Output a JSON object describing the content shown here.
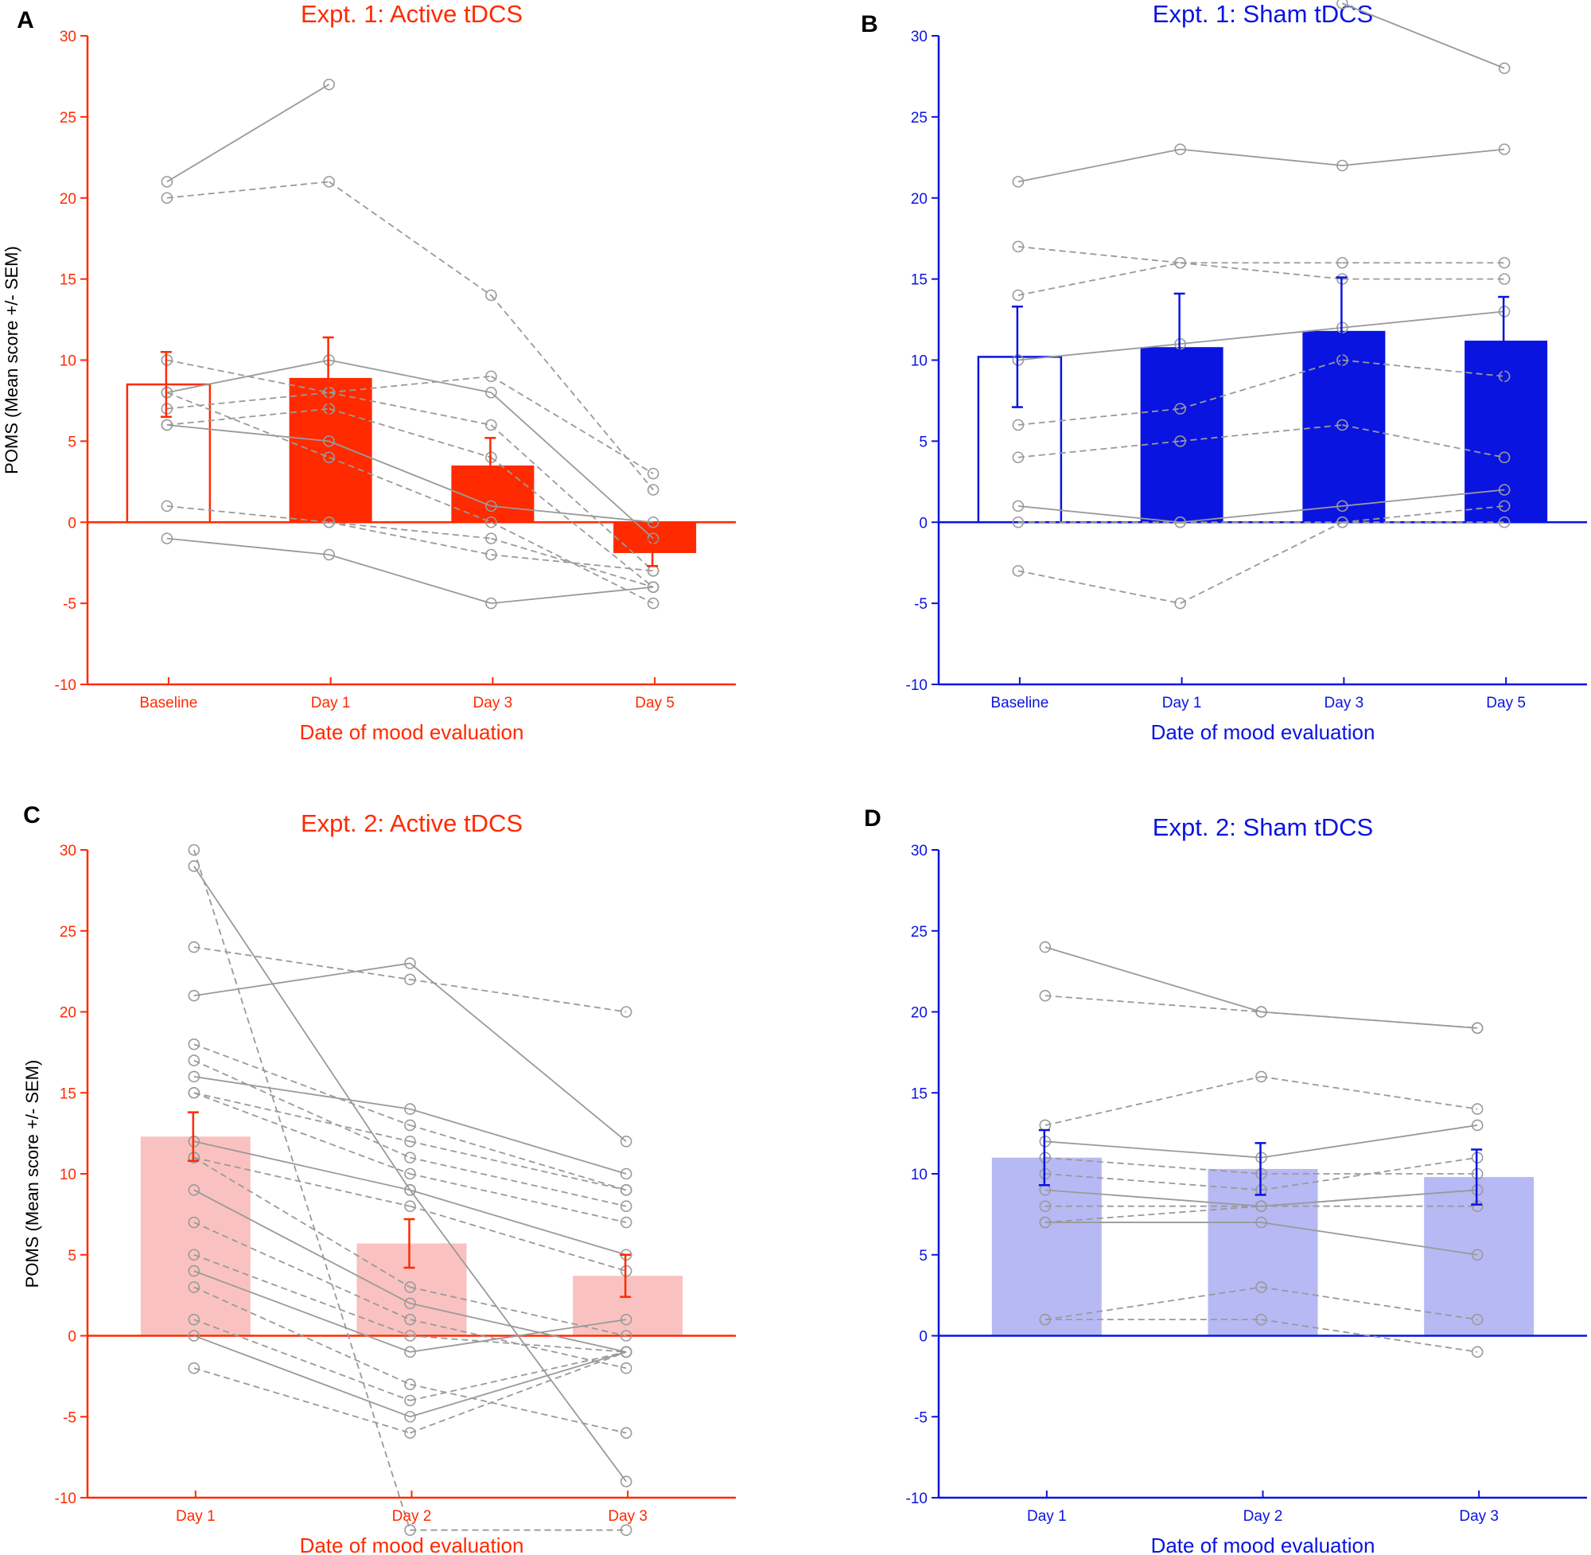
{
  "figure": {
    "ylabel": "POMS (Mean score +/- SEM)",
    "colors": {
      "red": "#ff2a00",
      "red_light": "#f9c2c0",
      "blue": "#0a14e0",
      "blue_light": "#b7b9f4",
      "individual": "#9a9a9a"
    }
  },
  "chart_data": [
    {
      "panel": "A",
      "type": "bar",
      "title": "Expt. 1: Active tDCS",
      "xlabel": "Date of mood evaluation",
      "ylabel": "POMS (Mean score +/- SEM)",
      "ylim": [
        -10,
        30
      ],
      "yticks": [
        -10,
        -5,
        0,
        5,
        10,
        15,
        20,
        25,
        30
      ],
      "categories": [
        "Baseline",
        "Day 1",
        "Day 3",
        "Day 5"
      ],
      "series": [
        {
          "name": "Mean",
          "values": [
            8.5,
            8.9,
            3.5,
            -1.9
          ],
          "sem": [
            2.0,
            2.5,
            1.7,
            0.8
          ]
        }
      ],
      "bar_style": [
        "open",
        "solid",
        "solid",
        "solid"
      ],
      "theme": "red",
      "individual_lines": [
        [
          21,
          27,
          null,
          null
        ],
        [
          20,
          21,
          14,
          2
        ],
        [
          10,
          8,
          9,
          3
        ],
        [
          8,
          10,
          8,
          -1
        ],
        [
          7,
          8,
          6,
          -3
        ],
        [
          6,
          7,
          4,
          -4
        ],
        [
          6,
          5,
          1,
          0
        ],
        [
          8,
          4,
          0,
          -5
        ],
        [
          1,
          0,
          -1,
          -4
        ],
        [
          -1,
          -2,
          -5,
          -4
        ],
        [
          null,
          0,
          -2,
          -3
        ]
      ]
    },
    {
      "panel": "B",
      "type": "bar",
      "title": "Expt. 1: Sham tDCS",
      "xlabel": "Date of mood evaluation",
      "ylabel": "",
      "ylim": [
        -10,
        30
      ],
      "yticks": [
        -10,
        -5,
        0,
        5,
        10,
        15,
        20,
        25,
        30
      ],
      "categories": [
        "Baseline",
        "Day 1",
        "Day 3",
        "Day 5"
      ],
      "series": [
        {
          "name": "Mean",
          "values": [
            10.2,
            10.8,
            11.8,
            11.2
          ],
          "sem": [
            3.1,
            3.3,
            3.3,
            2.7
          ]
        }
      ],
      "bar_style": [
        "open",
        "solid",
        "solid",
        "solid"
      ],
      "theme": "blue",
      "individual_lines": [
        [
          21,
          23,
          22,
          23
        ],
        [
          17,
          16,
          16,
          16
        ],
        [
          14,
          16,
          15,
          15
        ],
        [
          10,
          11,
          12,
          13
        ],
        [
          6,
          7,
          10,
          9
        ],
        [
          4,
          5,
          6,
          4
        ],
        [
          1,
          0,
          1,
          2
        ],
        [
          0,
          0,
          0,
          1
        ],
        [
          -3,
          -5,
          0,
          0
        ],
        [
          null,
          null,
          32,
          28
        ]
      ]
    },
    {
      "panel": "C",
      "type": "bar",
      "title": "Expt. 2: Active tDCS",
      "xlabel": "Date of mood evaluation",
      "ylabel": "POMS (Mean score +/- SEM)",
      "ylim": [
        -10,
        30
      ],
      "yticks": [
        -10,
        -5,
        0,
        5,
        10,
        15,
        20,
        25,
        30
      ],
      "categories": [
        "Day 1",
        "Day 2",
        "Day 3"
      ],
      "series": [
        {
          "name": "Mean",
          "values": [
            12.3,
            5.7,
            3.7
          ],
          "sem": [
            1.5,
            1.5,
            1.3
          ]
        }
      ],
      "bar_style": [
        "light",
        "light",
        "light"
      ],
      "theme": "red",
      "individual_lines": [
        [
          29,
          9,
          -9
        ],
        [
          30,
          -12,
          -12
        ],
        [
          24,
          22,
          20
        ],
        [
          21,
          23,
          12
        ],
        [
          18,
          13,
          9
        ],
        [
          17,
          11,
          8
        ],
        [
          16,
          14,
          10
        ],
        [
          15,
          12,
          9
        ],
        [
          15,
          10,
          7
        ],
        [
          12,
          9,
          5
        ],
        [
          11,
          8,
          4
        ],
        [
          11,
          3,
          0
        ],
        [
          9,
          2,
          -1
        ],
        [
          7,
          1,
          -2
        ],
        [
          5,
          0,
          -1
        ],
        [
          4,
          -1,
          1
        ],
        [
          3,
          -3,
          -6
        ],
        [
          1,
          -4,
          -1
        ],
        [
          0,
          -5,
          -1
        ],
        [
          -2,
          -6,
          -1
        ]
      ]
    },
    {
      "panel": "D",
      "type": "bar",
      "title": "Expt. 2: Sham tDCS",
      "xlabel": "Date of mood evaluation",
      "ylabel": "",
      "ylim": [
        -10,
        30
      ],
      "yticks": [
        -10,
        -5,
        0,
        5,
        10,
        15,
        20,
        25,
        30
      ],
      "categories": [
        "Day 1",
        "Day 2",
        "Day 3"
      ],
      "series": [
        {
          "name": "Mean",
          "values": [
            11.0,
            10.3,
            9.8
          ],
          "sem": [
            1.7,
            1.6,
            1.7
          ]
        }
      ],
      "bar_style": [
        "light",
        "light",
        "light"
      ],
      "theme": "blue",
      "individual_lines": [
        [
          24,
          20,
          19
        ],
        [
          21,
          20,
          19
        ],
        [
          13,
          16,
          14
        ],
        [
          12,
          11,
          13
        ],
        [
          11,
          10,
          10
        ],
        [
          10,
          9,
          11
        ],
        [
          9,
          8,
          9
        ],
        [
          8,
          8,
          8
        ],
        [
          7,
          8,
          9
        ],
        [
          7,
          7,
          5
        ],
        [
          1,
          3,
          1
        ],
        [
          1,
          1,
          -1
        ]
      ]
    }
  ]
}
